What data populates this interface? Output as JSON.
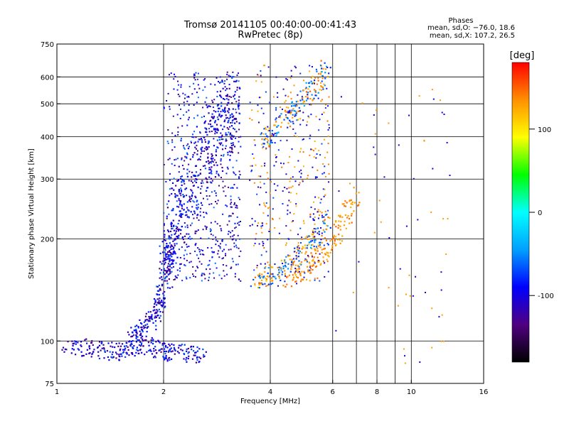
{
  "chart_data": {
    "type": "scatter",
    "title": "Tromsø 20141105 00:40:00-00:41:43",
    "subtitle": "RwPretec (8p)",
    "xlabel": "Frequency [MHz]",
    "ylabel": "Stationary phase Virtual Height [km]",
    "x_scale": "log",
    "y_scale": "log",
    "xlim": [
      1,
      16
    ],
    "ylim": [
      75,
      750
    ],
    "x_ticks": [
      1,
      2,
      4,
      6,
      8,
      10,
      16
    ],
    "x_gridlines": [
      2,
      4,
      6,
      7,
      8,
      9,
      10
    ],
    "y_ticks": [
      75,
      100,
      200,
      300,
      400,
      500,
      600,
      750
    ],
    "y_gridlines": [
      100,
      200,
      300,
      400,
      500,
      600
    ],
    "grid": true,
    "stats": {
      "heading": "Phases",
      "line1": "mean, sd,O: −76.0, 18.6",
      "line2": "mean, sd,X: 107.2, 26.5"
    },
    "colorbar": {
      "label": "[deg]",
      "range": [
        -180,
        180
      ],
      "ticks": [
        100,
        0,
        -100
      ],
      "colors": [
        "#000000",
        "#500080",
        "#0000ff",
        "#00a0ff",
        "#00ffff",
        "#00ff00",
        "#ffff00",
        "#ff9000",
        "#ff0000"
      ]
    },
    "series": [
      {
        "x": [
          1.05,
          1.2,
          1.35,
          1.5,
          1.65,
          1.8,
          1.95,
          2.1,
          2.3,
          2.6
        ],
        "y": [
          95,
          96,
          94,
          93,
          95,
          97,
          94,
          93,
          92,
          91
        ]
      },
      {
        "x": [
          1.6,
          1.7,
          1.8,
          1.9,
          1.95,
          2.0,
          2.05,
          2.1
        ],
        "y": [
          100,
          105,
          112,
          120,
          130,
          150,
          175,
          200
        ]
      },
      {
        "x": [
          2.0,
          2.1,
          2.2,
          2.4,
          2.6,
          2.8,
          3.0,
          3.2
        ],
        "y": [
          160,
          200,
          250,
          300,
          350,
          400,
          450,
          500
        ]
      },
      {
        "x": [
          3.6,
          3.9,
          4.2,
          4.6,
          5.0,
          5.4,
          5.8
        ],
        "y": [
          150,
          155,
          160,
          170,
          185,
          200,
          230
        ]
      },
      {
        "x": [
          4.5,
          5.0,
          5.5,
          6.0,
          6.5,
          7.0
        ],
        "y": [
          150,
          160,
          175,
          200,
          230,
          270
        ]
      },
      {
        "x": [
          3.8,
          4.2,
          4.6,
          5.0,
          5.4,
          5.8
        ],
        "y": [
          380,
          420,
          470,
          520,
          580,
          640
        ]
      }
    ]
  }
}
